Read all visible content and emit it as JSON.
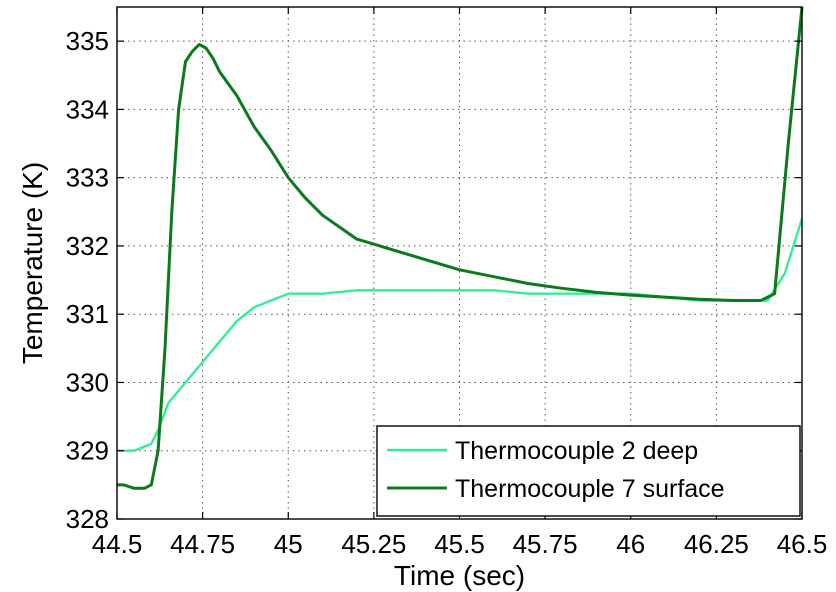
{
  "chart_data": {
    "type": "line",
    "title": "",
    "xlabel": "Time (sec)",
    "ylabel": "Temperature (K)",
    "xlim": [
      44.5,
      46.5
    ],
    "ylim": [
      328,
      335.5
    ],
    "grid": true,
    "legend_position": "bottom-right",
    "x_ticks": [
      44.5,
      44.75,
      45,
      45.25,
      45.5,
      45.75,
      46,
      46.25,
      46.5
    ],
    "x_tick_labels": [
      "44.5",
      "44.75",
      "45",
      "45.25",
      "45.5",
      "45.75",
      "46",
      "46.25",
      "46.5"
    ],
    "y_ticks": [
      328,
      329,
      330,
      331,
      332,
      333,
      334,
      335
    ],
    "y_tick_labels": [
      "328",
      "329",
      "330",
      "331",
      "332",
      "333",
      "334",
      "335"
    ],
    "series": [
      {
        "name": "Thermocouple 2 deep",
        "color": "#33ee99",
        "x": [
          44.5,
          44.55,
          44.6,
          44.62,
          44.65,
          44.7,
          44.75,
          44.8,
          44.85,
          44.9,
          44.95,
          45.0,
          45.1,
          45.2,
          45.3,
          45.4,
          45.5,
          45.6,
          45.7,
          45.8,
          45.9,
          46.0,
          46.1,
          46.2,
          46.3,
          46.4,
          46.45,
          46.5
        ],
        "y": [
          329.0,
          329.0,
          329.1,
          329.3,
          329.7,
          330.0,
          330.3,
          330.6,
          330.9,
          331.1,
          331.2,
          331.3,
          331.3,
          331.35,
          331.35,
          331.35,
          331.35,
          331.35,
          331.3,
          331.3,
          331.3,
          331.3,
          331.25,
          331.2,
          331.2,
          331.2,
          331.6,
          332.4
        ]
      },
      {
        "name": "Thermocouple 7 surface",
        "color": "#0a7a1a",
        "x": [
          44.5,
          44.52,
          44.55,
          44.58,
          44.6,
          44.62,
          44.64,
          44.66,
          44.68,
          44.7,
          44.72,
          44.74,
          44.76,
          44.78,
          44.8,
          44.85,
          44.9,
          44.95,
          45.0,
          45.05,
          45.1,
          45.2,
          45.3,
          45.4,
          45.5,
          45.6,
          45.7,
          45.8,
          45.9,
          46.0,
          46.1,
          46.2,
          46.3,
          46.38,
          46.42,
          46.46,
          46.5
        ],
        "y": [
          328.5,
          328.5,
          328.45,
          328.45,
          328.5,
          329.0,
          330.5,
          332.5,
          334.0,
          334.7,
          334.85,
          334.95,
          334.9,
          334.75,
          334.55,
          334.2,
          333.75,
          333.4,
          333.0,
          332.7,
          332.45,
          332.1,
          331.95,
          331.8,
          331.65,
          331.55,
          331.45,
          331.38,
          331.32,
          331.28,
          331.25,
          331.22,
          331.2,
          331.2,
          331.3,
          333.5,
          335.5
        ]
      }
    ]
  }
}
